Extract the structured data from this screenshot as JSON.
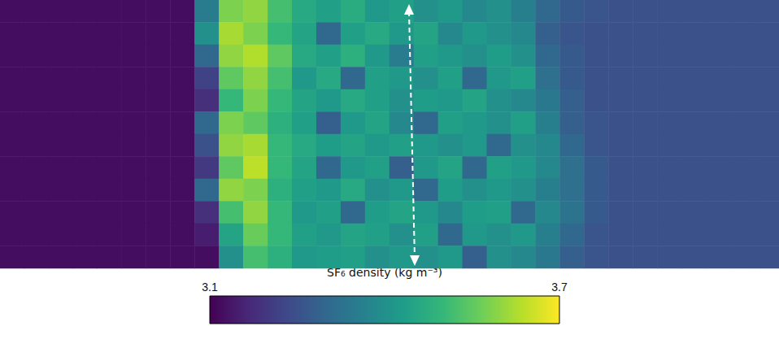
{
  "chart_data": {
    "type": "heatmap",
    "cells": [
      [
        3.12,
        3.12,
        3.12,
        3.12,
        3.12,
        3.12,
        3.12,
        3.12,
        3.35,
        3.58,
        3.6,
        3.52,
        3.46,
        3.44,
        3.47,
        3.42,
        3.44,
        3.4,
        3.42,
        3.38,
        3.4,
        3.36,
        3.3,
        3.27,
        3.26,
        3.25,
        3.25,
        3.25,
        3.25,
        3.25,
        3.25,
        3.25
      ],
      [
        3.12,
        3.12,
        3.12,
        3.12,
        3.12,
        3.12,
        3.12,
        3.12,
        3.4,
        3.62,
        3.58,
        3.5,
        3.45,
        3.3,
        3.44,
        3.46,
        3.42,
        3.45,
        3.38,
        3.42,
        3.4,
        3.38,
        3.28,
        3.26,
        3.25,
        3.25,
        3.25,
        3.25,
        3.25,
        3.25,
        3.25,
        3.25
      ],
      [
        3.12,
        3.12,
        3.12,
        3.12,
        3.12,
        3.12,
        3.12,
        3.12,
        3.3,
        3.6,
        3.63,
        3.55,
        3.46,
        3.44,
        3.48,
        3.42,
        3.35,
        3.44,
        3.42,
        3.4,
        3.43,
        3.4,
        3.3,
        3.27,
        3.25,
        3.25,
        3.25,
        3.25,
        3.25,
        3.25,
        3.25,
        3.25
      ],
      [
        3.12,
        3.12,
        3.12,
        3.12,
        3.12,
        3.12,
        3.12,
        3.12,
        3.22,
        3.55,
        3.6,
        3.52,
        3.42,
        3.46,
        3.3,
        3.44,
        3.42,
        3.4,
        3.44,
        3.3,
        3.42,
        3.44,
        3.32,
        3.27,
        3.25,
        3.25,
        3.25,
        3.25,
        3.25,
        3.25,
        3.25,
        3.25
      ],
      [
        3.12,
        3.12,
        3.12,
        3.12,
        3.12,
        3.12,
        3.12,
        3.12,
        3.18,
        3.5,
        3.58,
        3.5,
        3.45,
        3.42,
        3.46,
        3.44,
        3.4,
        3.43,
        3.42,
        3.45,
        3.4,
        3.38,
        3.34,
        3.28,
        3.25,
        3.25,
        3.25,
        3.25,
        3.25,
        3.25,
        3.25,
        3.25
      ],
      [
        3.12,
        3.12,
        3.12,
        3.12,
        3.12,
        3.12,
        3.12,
        3.12,
        3.3,
        3.58,
        3.55,
        3.48,
        3.44,
        3.28,
        3.42,
        3.45,
        3.38,
        3.3,
        3.44,
        3.42,
        3.4,
        3.44,
        3.36,
        3.28,
        3.26,
        3.25,
        3.25,
        3.25,
        3.25,
        3.25,
        3.25,
        3.25
      ],
      [
        3.12,
        3.12,
        3.12,
        3.12,
        3.12,
        3.12,
        3.12,
        3.12,
        3.25,
        3.6,
        3.62,
        3.5,
        3.46,
        3.43,
        3.45,
        3.42,
        3.44,
        3.42,
        3.4,
        3.42,
        3.3,
        3.4,
        3.38,
        3.3,
        3.26,
        3.25,
        3.25,
        3.25,
        3.25,
        3.25,
        3.25,
        3.25
      ],
      [
        3.12,
        3.12,
        3.12,
        3.12,
        3.12,
        3.12,
        3.12,
        3.12,
        3.2,
        3.55,
        3.64,
        3.5,
        3.45,
        3.3,
        3.42,
        3.44,
        3.28,
        3.42,
        3.45,
        3.3,
        3.44,
        3.42,
        3.38,
        3.32,
        3.27,
        3.25,
        3.25,
        3.25,
        3.25,
        3.25,
        3.25,
        3.25
      ],
      [
        3.12,
        3.12,
        3.12,
        3.12,
        3.12,
        3.12,
        3.12,
        3.12,
        3.3,
        3.6,
        3.58,
        3.48,
        3.44,
        3.42,
        3.46,
        3.4,
        3.42,
        3.3,
        3.43,
        3.4,
        3.42,
        3.4,
        3.36,
        3.32,
        3.27,
        3.25,
        3.25,
        3.25,
        3.25,
        3.25,
        3.25,
        3.25
      ],
      [
        3.12,
        3.12,
        3.12,
        3.12,
        3.12,
        3.12,
        3.12,
        3.12,
        3.18,
        3.52,
        3.6,
        3.5,
        3.42,
        3.44,
        3.3,
        3.43,
        3.45,
        3.42,
        3.38,
        3.43,
        3.44,
        3.3,
        3.38,
        3.33,
        3.27,
        3.25,
        3.25,
        3.25,
        3.25,
        3.25,
        3.25,
        3.25
      ],
      [
        3.12,
        3.12,
        3.12,
        3.12,
        3.12,
        3.12,
        3.12,
        3.12,
        3.15,
        3.45,
        3.56,
        3.5,
        3.44,
        3.42,
        3.45,
        3.44,
        3.4,
        3.44,
        3.3,
        3.42,
        3.4,
        3.42,
        3.36,
        3.3,
        3.26,
        3.25,
        3.25,
        3.25,
        3.25,
        3.25,
        3.25,
        3.25
      ],
      [
        3.12,
        3.12,
        3.12,
        3.12,
        3.12,
        3.12,
        3.12,
        3.12,
        3.12,
        3.4,
        3.52,
        3.48,
        3.42,
        3.43,
        3.44,
        3.4,
        3.42,
        3.4,
        3.42,
        3.28,
        3.4,
        3.38,
        3.34,
        3.28,
        3.26,
        3.25,
        3.25,
        3.25,
        3.25,
        3.25,
        3.25,
        3.25
      ]
    ],
    "color_range": [
      3.1,
      3.7
    ],
    "color_ticks": [
      3.1,
      3.7
    ],
    "colorbar_label": "SF₆ density (kg m⁻³)",
    "tick_labels": false
  }
}
